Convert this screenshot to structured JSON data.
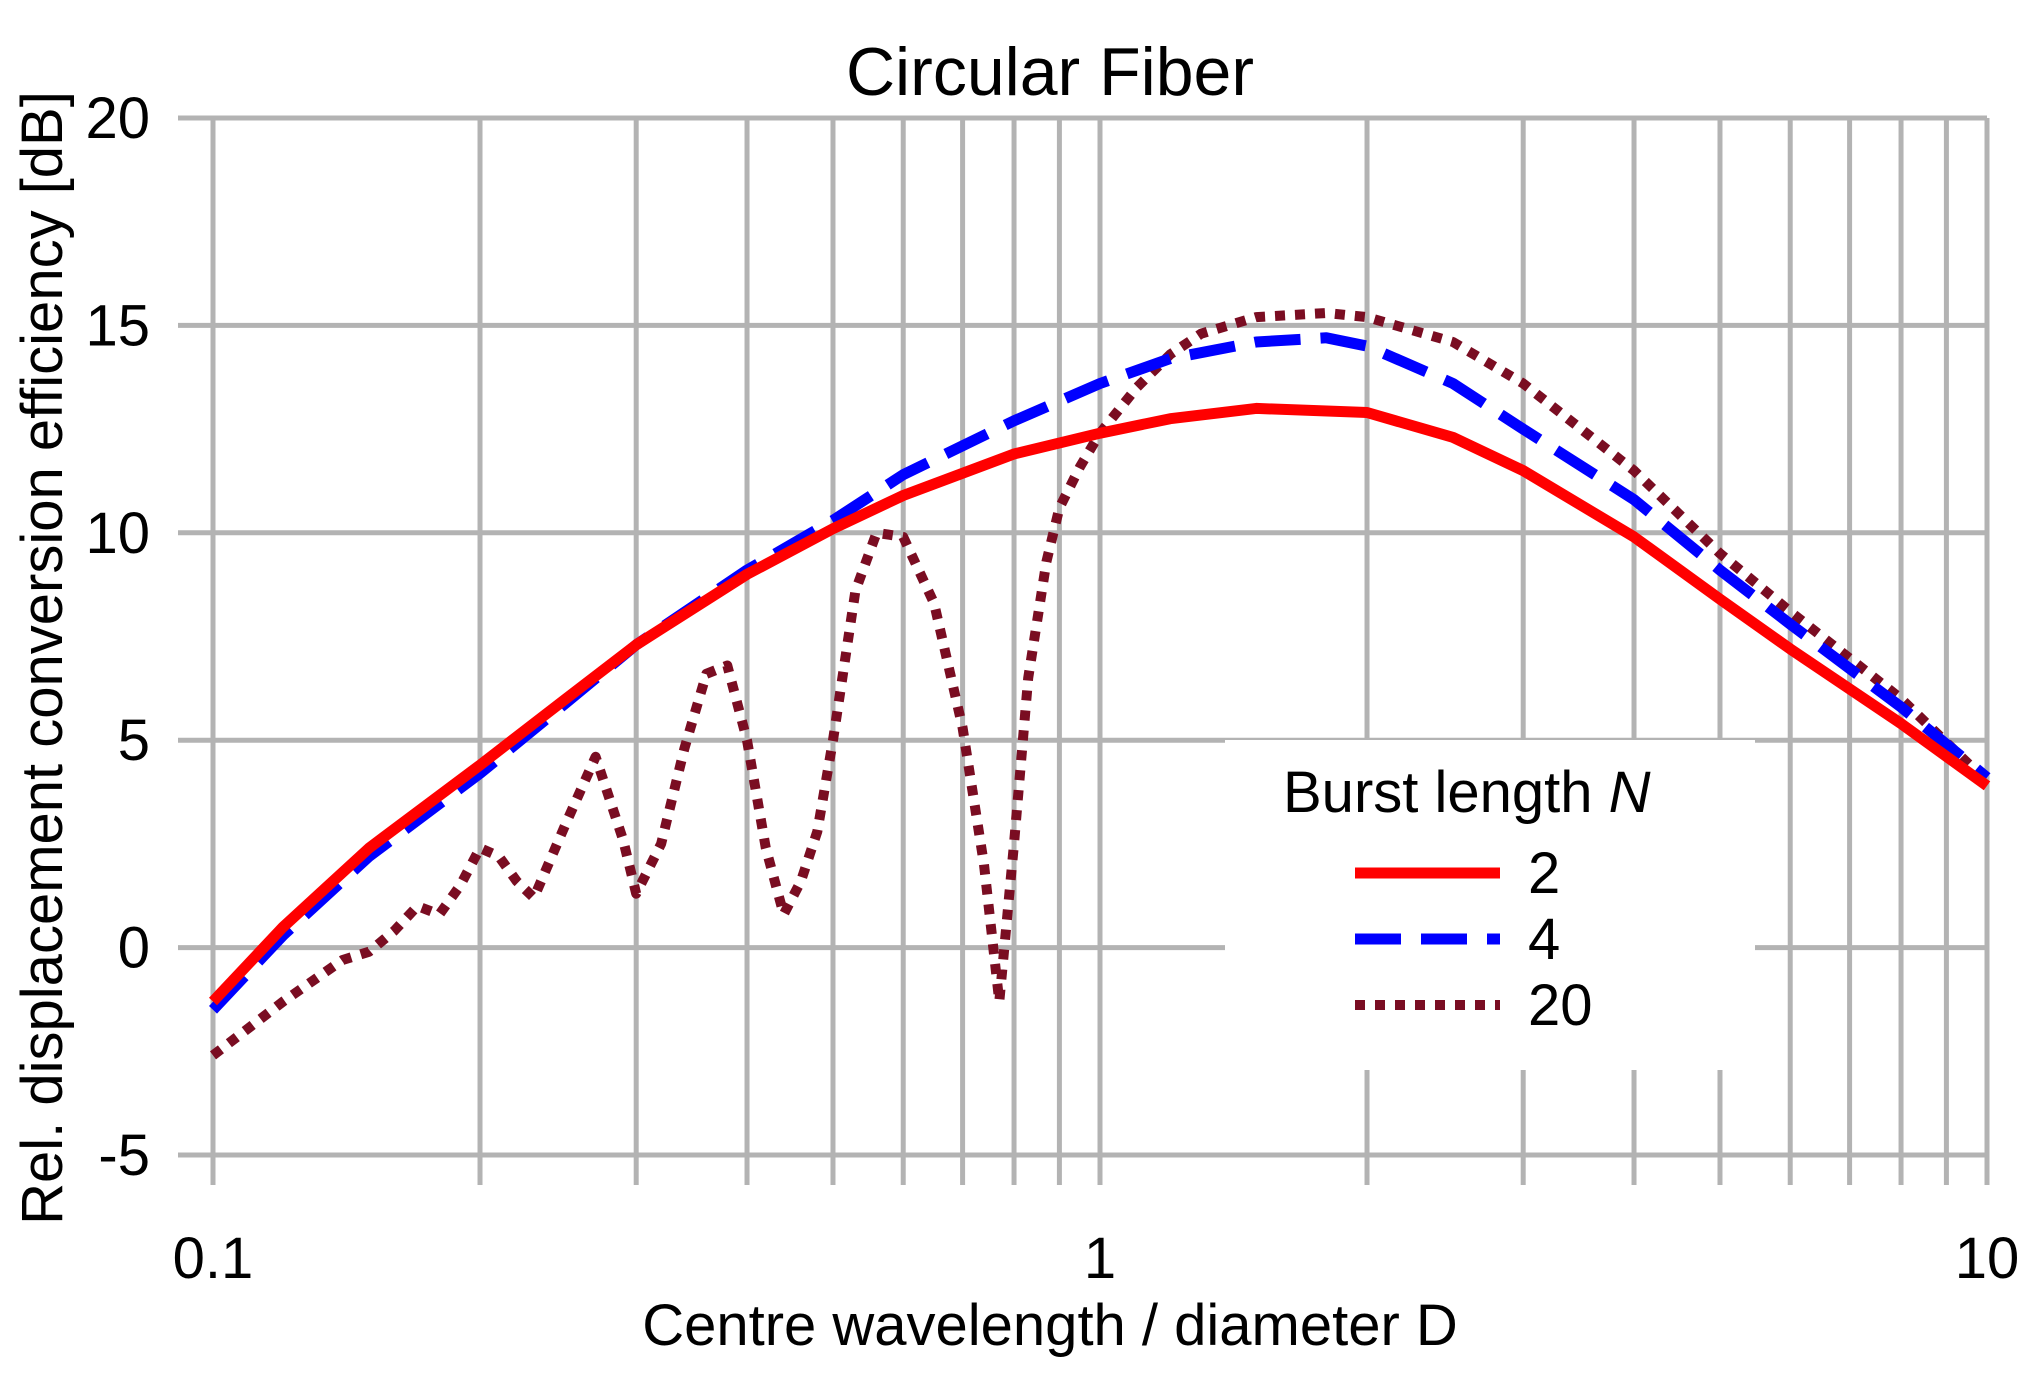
{
  "chart_data": {
    "type": "line",
    "title": "Circular Fiber",
    "xlabel": "Centre wavelength / diameter D",
    "ylabel": "Rel. displacement conversion efficiency [dB]",
    "xscale": "log",
    "xlim": [
      0.1,
      10
    ],
    "ylim": [
      -5,
      20
    ],
    "x_ticks": [
      0.1,
      1,
      10
    ],
    "x_tick_labels": [
      "0.1",
      "1",
      "10"
    ],
    "y_ticks": [
      -5,
      0,
      5,
      10,
      15,
      20
    ],
    "y_tick_labels": [
      "-5",
      "0",
      "5",
      "10",
      "15",
      "20"
    ],
    "grid": true,
    "legend": {
      "title_text": "Burst length ",
      "title_var": "N",
      "placement": "center-right"
    },
    "series": [
      {
        "name": "2",
        "color": "#ff0000",
        "style": "solid",
        "x": [
          0.1,
          0.12,
          0.15,
          0.2,
          0.25,
          0.3,
          0.4,
          0.5,
          0.6,
          0.8,
          1.0,
          1.2,
          1.5,
          2.0,
          2.5,
          3.0,
          4.0,
          5.0,
          6.0,
          8.0,
          10.0
        ],
        "y": [
          -1.3,
          0.5,
          2.4,
          4.4,
          6.0,
          7.3,
          9.0,
          10.1,
          10.9,
          11.9,
          12.4,
          12.75,
          13.0,
          12.9,
          12.3,
          11.5,
          9.9,
          8.4,
          7.2,
          5.4,
          3.9
        ]
      },
      {
        "name": "4",
        "color": "#0000ff",
        "style": "dashed",
        "x": [
          0.1,
          0.12,
          0.15,
          0.2,
          0.25,
          0.3,
          0.4,
          0.5,
          0.6,
          0.8,
          1.0,
          1.2,
          1.5,
          1.8,
          2.0,
          2.5,
          3.0,
          4.0,
          5.0,
          6.0,
          8.0,
          10.0
        ],
        "y": [
          -1.5,
          0.3,
          2.2,
          4.2,
          5.9,
          7.3,
          9.1,
          10.3,
          11.4,
          12.7,
          13.6,
          14.2,
          14.6,
          14.7,
          14.5,
          13.6,
          12.5,
          10.8,
          9.1,
          7.8,
          5.8,
          4.1
        ]
      },
      {
        "name": "20",
        "color": "#7a0d22",
        "style": "dotted",
        "x": [
          0.1,
          0.12,
          0.14,
          0.15,
          0.16,
          0.17,
          0.18,
          0.19,
          0.2,
          0.21,
          0.22,
          0.23,
          0.25,
          0.27,
          0.29,
          0.3,
          0.32,
          0.34,
          0.36,
          0.38,
          0.4,
          0.42,
          0.44,
          0.46,
          0.48,
          0.5,
          0.53,
          0.56,
          0.6,
          0.65,
          0.7,
          0.74,
          0.77,
          0.8,
          0.83,
          0.87,
          0.9,
          0.95,
          1.0,
          1.1,
          1.2,
          1.3,
          1.5,
          1.8,
          2.0,
          2.5,
          3.0,
          4.0,
          5.0,
          6.0,
          8.0,
          10.0
        ],
        "y": [
          -2.6,
          -1.3,
          -0.3,
          -0.1,
          0.4,
          1.0,
          0.8,
          1.5,
          2.4,
          2.2,
          1.6,
          1.2,
          3.0,
          4.6,
          2.6,
          1.3,
          2.5,
          4.8,
          6.6,
          6.8,
          5.0,
          2.4,
          0.8,
          1.6,
          2.8,
          5.0,
          8.6,
          10.0,
          9.9,
          8.3,
          5.3,
          2.0,
          -1.3,
          2.5,
          6.5,
          9.3,
          10.6,
          11.6,
          12.4,
          13.5,
          14.3,
          14.8,
          15.2,
          15.3,
          15.2,
          14.6,
          13.6,
          11.5,
          9.5,
          8.1,
          6.0,
          4.0
        ]
      }
    ]
  }
}
